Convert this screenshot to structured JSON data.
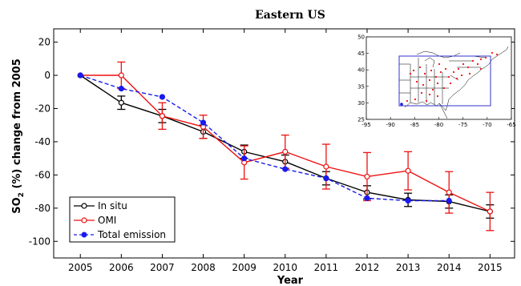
{
  "chart_data": {
    "type": "line",
    "title": "Eastern US",
    "xlabel": "Year",
    "ylabel_main": "SO",
    "ylabel_sub": "2",
    "ylabel_rest": " (%) change from 2005",
    "xlim": [
      2004.35,
      2015.6
    ],
    "ylim": [
      -110,
      28
    ],
    "x": [
      2005,
      2006,
      2007,
      2008,
      2009,
      2010,
      2011,
      2012,
      2013,
      2014,
      2015
    ],
    "y_ticks": [
      20,
      0,
      -20,
      -40,
      -60,
      -80,
      -100
    ],
    "series": [
      {
        "name": "In situ",
        "color": "#000000",
        "dash": false,
        "marker": "open-circle",
        "values": [
          0,
          -16.5,
          -24.5,
          -34,
          -46,
          -52,
          -62,
          -70.5,
          -75,
          -76,
          -82
        ],
        "err": [
          0,
          4,
          4,
          4,
          4,
          4,
          4,
          4,
          4,
          4,
          4
        ]
      },
      {
        "name": "OMI",
        "color": "#ee1111",
        "dash": false,
        "marker": "open-circle",
        "values": [
          0,
          0,
          -24.5,
          -31,
          -52.5,
          -46,
          -55,
          -61,
          -57.5,
          -70.5,
          -82
        ],
        "err": [
          0,
          8,
          8,
          7,
          10,
          10,
          13.5,
          14.5,
          11.5,
          12.5,
          11.5
        ]
      },
      {
        "name": "Total emission",
        "color": "#1a1aee",
        "dash": true,
        "marker": "filled-circle",
        "values": [
          0,
          -8,
          -13,
          -28.5,
          -50,
          -56.5,
          -62,
          -74,
          -75.5,
          -75.5,
          null
        ],
        "err": null
      }
    ],
    "legend_position": "bottom-left",
    "grid": false,
    "inset": {
      "type": "map",
      "xlim": [
        -95,
        -65
      ],
      "ylim": [
        25,
        50
      ],
      "x_ticks": [
        "-95",
        "-90",
        "-85",
        "-80",
        "-75",
        "-70",
        "-65"
      ],
      "y_ticks": [
        "50",
        "45",
        "40",
        "35",
        "30",
        "25"
      ],
      "box_lon": [
        -90,
        -70
      ],
      "box_lat": [
        30,
        45
      ]
    }
  }
}
